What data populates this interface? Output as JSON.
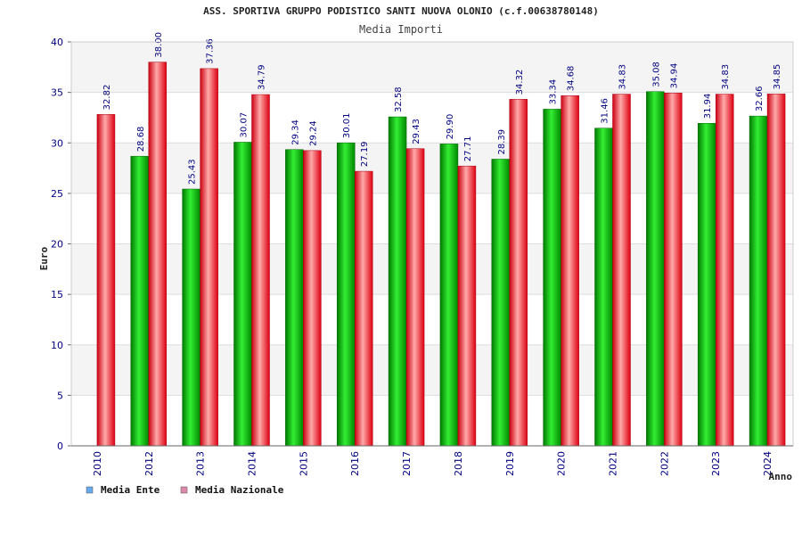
{
  "chart_data": {
    "type": "bar",
    "title": "ASS. SPORTIVA GRUPPO PODISTICO SANTI NUOVA OLONIO (c.f.00638780148)",
    "subtitle": "Media Importi",
    "xlabel": "Anno",
    "ylabel": "Euro",
    "ylim": [
      0,
      40
    ],
    "yticks": [
      0,
      5,
      10,
      15,
      20,
      25,
      30,
      35,
      40
    ],
    "categories": [
      "2010",
      "2012",
      "2013",
      "2014",
      "2015",
      "2016",
      "2017",
      "2018",
      "2019",
      "2020",
      "2021",
      "2022",
      "2023",
      "2024"
    ],
    "series": [
      {
        "name": "Media Ente",
        "color": "#00aa00",
        "legend_color": "#66aaee",
        "values": [
          null,
          28.68,
          25.43,
          30.07,
          29.34,
          30.01,
          32.58,
          29.9,
          28.39,
          33.34,
          31.46,
          35.08,
          31.94,
          32.66
        ],
        "labels": [
          "",
          "28.68",
          "25.43",
          "30.07",
          "29.34",
          "30.01",
          "32.58",
          "29.90",
          "28.39",
          "33.34",
          "31.46",
          "35.08",
          "31.94",
          "32.66"
        ]
      },
      {
        "name": "Media Nazionale",
        "color": "#ee1122",
        "legend_color": "#dd88aa",
        "values": [
          32.82,
          38.0,
          37.36,
          34.79,
          29.24,
          27.19,
          29.43,
          27.71,
          34.32,
          34.68,
          34.83,
          34.94,
          34.83,
          34.85
        ],
        "labels": [
          "32.82",
          "38.00",
          "37.36",
          "34.79",
          "29.24",
          "27.19",
          "29.43",
          "27.71",
          "34.32",
          "34.68",
          "34.83",
          "34.94",
          "34.83",
          "34.85"
        ]
      }
    ]
  }
}
